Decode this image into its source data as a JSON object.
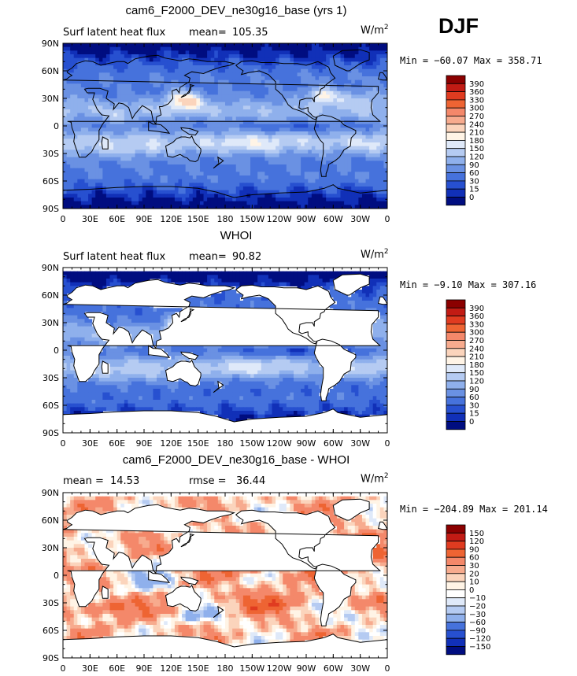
{
  "season": "DJF",
  "chart_data": [
    {
      "type": "heatmap",
      "title": "cam6_F2000_DEV_ne30g16_base (yrs 1)",
      "left_label": "Surf latent heat flux",
      "mean_label": "mean=",
      "mean_value": "105.35",
      "units": "W/m",
      "units_sup": "2",
      "min_max_text": "Min = −60.07 Max = 358.71",
      "colorbar_labels": [
        "390",
        "360",
        "330",
        "300",
        "270",
        "240",
        "210",
        "180",
        "150",
        "120",
        "90",
        "60",
        "30",
        "15",
        "0"
      ],
      "colorbar_colors": [
        "#8b0000",
        "#c21b14",
        "#e03b20",
        "#ee6433",
        "#f4886a",
        "#f7ab8e",
        "#fbd4bc",
        "#fff4e6",
        "#dfe9f9",
        "#b5cbf2",
        "#8fb0ec",
        "#6a91e3",
        "#4672dc",
        "#2750d0",
        "#1130b8",
        "#000d80"
      ],
      "x_ticks": [
        "0",
        "30E",
        "60E",
        "90E",
        "120E",
        "150E",
        "180",
        "150W",
        "120W",
        "90W",
        "60W",
        "30W",
        "0"
      ],
      "y_ticks": [
        "90N",
        "60N",
        "30N",
        "0",
        "30S",
        "60S",
        "90S"
      ],
      "masked_ocean_only": false
    },
    {
      "type": "heatmap",
      "title": "WHOI",
      "left_label": "Surf latent heat flux",
      "mean_label": "mean=",
      "mean_value": "90.82",
      "units": "W/m",
      "units_sup": "2",
      "min_max_text": "Min = −9.10 Max = 307.16",
      "colorbar_labels": [
        "390",
        "360",
        "330",
        "300",
        "270",
        "240",
        "210",
        "180",
        "150",
        "120",
        "90",
        "60",
        "30",
        "15",
        "0"
      ],
      "colorbar_colors": [
        "#8b0000",
        "#c21b14",
        "#e03b20",
        "#ee6433",
        "#f4886a",
        "#f7ab8e",
        "#fbd4bc",
        "#fff4e6",
        "#dfe9f9",
        "#b5cbf2",
        "#8fb0ec",
        "#6a91e3",
        "#4672dc",
        "#2750d0",
        "#1130b8",
        "#000d80"
      ],
      "x_ticks": [
        "0",
        "30E",
        "60E",
        "90E",
        "120E",
        "150E",
        "180",
        "150W",
        "120W",
        "90W",
        "60W",
        "30W",
        "0"
      ],
      "y_ticks": [
        "90N",
        "60N",
        "30N",
        "0",
        "30S",
        "60S",
        "90S"
      ],
      "masked_ocean_only": true
    },
    {
      "type": "heatmap",
      "title": "cam6_F2000_DEV_ne30g16_base - WHOI",
      "left_label": "mean =",
      "mean_label": "",
      "mean_value": "14.53",
      "rmse_label": "rmse =",
      "rmse_value": "36.44",
      "units": "W/m",
      "units_sup": "2",
      "min_max_text": "Min = −204.89 Max = 201.14",
      "colorbar_labels": [
        "150",
        "120",
        "90",
        "60",
        "30",
        "20",
        "10",
        "0",
        "−10",
        "−20",
        "−30",
        "−60",
        "−90",
        "−120",
        "−150"
      ],
      "colorbar_colors": [
        "#8b0000",
        "#c21b14",
        "#e03b20",
        "#ee6433",
        "#f4886a",
        "#f7ab8e",
        "#fbd4bc",
        "#fff4e6",
        "#ffffff",
        "#dfe9f9",
        "#b5cbf2",
        "#8fb0ec",
        "#4672dc",
        "#2750d0",
        "#1130b8",
        "#000d80"
      ],
      "x_ticks": [
        "0",
        "30E",
        "60E",
        "90E",
        "120E",
        "150E",
        "180",
        "150W",
        "120W",
        "90W",
        "60W",
        "30W",
        "0"
      ],
      "y_ticks": [
        "90N",
        "60N",
        "30N",
        "0",
        "30S",
        "60S",
        "90S"
      ],
      "masked_ocean_only": true
    }
  ]
}
